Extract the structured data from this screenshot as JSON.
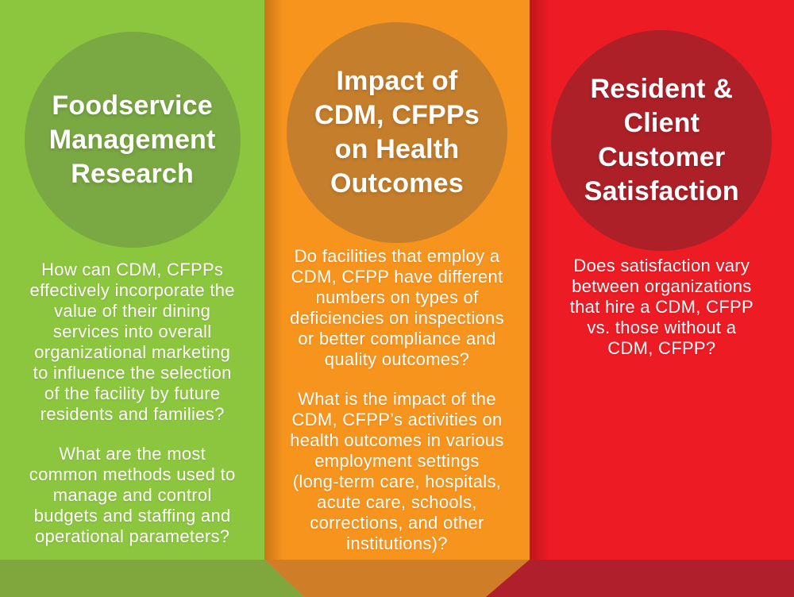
{
  "infographic": {
    "columns": [
      {
        "name": "foodservice-management-research",
        "colors": {
          "background": "#8CC63F",
          "circle": "#7AA843",
          "ribbon_fold": "#80A73D"
        },
        "title_lines": [
          "Foodservice",
          "Management",
          "Research"
        ],
        "paragraphs": [
          [
            "How can CDM, CFPPs",
            "effectively incorporate the",
            "value of their dining",
            "services into overall",
            "organizational marketing",
            "to influence the selection",
            "of the facility by future",
            "residents and families?"
          ],
          [
            "What are the most",
            "common methods used to",
            "manage and control",
            "budgets and staffing and",
            "operational parameters?"
          ]
        ]
      },
      {
        "name": "impact-of-cdm-cfpps-on-health-outcomes",
        "colors": {
          "background": "#F7941D",
          "circle": "#C57E2B",
          "ribbon_fold": "#CF7D27"
        },
        "title_lines": [
          "Impact of",
          "CDM, CFPPs",
          "on Health",
          "Outcomes"
        ],
        "paragraphs": [
          [
            "Do facilities that employ a",
            "CDM, CFPP have different",
            "numbers on types of",
            "deficiencies on inspections",
            "or better compliance and",
            "quality outcomes?"
          ],
          [
            "What is the impact of the",
            "CDM, CFPP’s activities on",
            "health outcomes in various",
            "employment settings",
            "(long-term care, hospitals,",
            "acute care, schools,",
            "corrections, and other",
            "institutions)?"
          ]
        ]
      },
      {
        "name": "resident-client-customer-satisfaction",
        "colors": {
          "background": "#EC1B24",
          "circle": "#AE2028",
          "ribbon_fold": "#AF202C"
        },
        "title_lines": [
          "Resident &",
          "Client",
          "Customer",
          "Satisfaction"
        ],
        "paragraphs": [
          [
            "Does satisfaction vary",
            "between organizations",
            "that hire a CDM, CFPP",
            "vs. those without a",
            "CDM, CFPP?"
          ]
        ]
      }
    ],
    "text_color": "#FFFFFF"
  }
}
